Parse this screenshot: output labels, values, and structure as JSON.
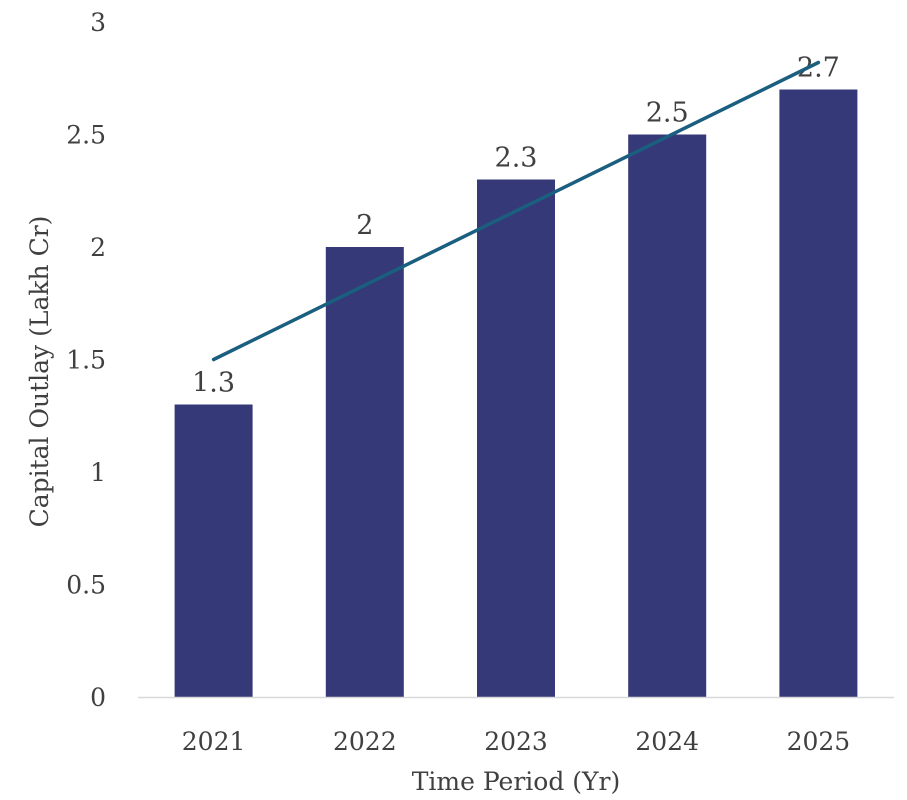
{
  "chart_data": {
    "type": "bar",
    "title": "",
    "xlabel": "Time Period (Yr)",
    "ylabel": "Capital Outlay (Lakh Cr)",
    "categories": [
      "2021",
      "2022",
      "2023",
      "2024",
      "2025"
    ],
    "values": [
      1.3,
      2,
      2.3,
      2.5,
      2.7
    ],
    "data_labels": [
      "1.3",
      "2",
      "2.3",
      "2.5",
      "2.7"
    ],
    "ylim": [
      0,
      3
    ],
    "yticks": [
      0,
      0.5,
      1,
      1.5,
      2,
      2.5,
      3
    ],
    "ytick_labels": [
      "0",
      "0.5",
      "1",
      "1.5",
      "2",
      "2.5",
      "3"
    ],
    "grid": false,
    "legend": "none",
    "trendline": {
      "type": "linear",
      "start_value": 1.5,
      "end_value": 2.82
    },
    "colors": {
      "bar": "#363977",
      "trendline": "#1a5e80",
      "axis": "#d9d9d9",
      "text": "#404040"
    }
  }
}
